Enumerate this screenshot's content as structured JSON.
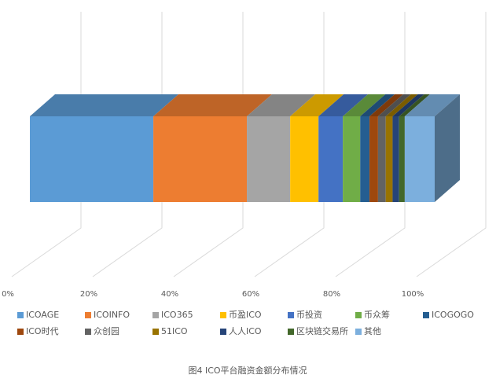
{
  "chart_data": {
    "type": "bar",
    "orientation": "horizontal",
    "stacked": true,
    "caption": "图4 ICO平台融资金额分布情况",
    "xlim": [
      0,
      100
    ],
    "xticks": [
      {
        "value": 0,
        "label": "0%"
      },
      {
        "value": 20,
        "label": "20%"
      },
      {
        "value": 40,
        "label": "40%"
      },
      {
        "value": 60,
        "label": "60%"
      },
      {
        "value": 80,
        "label": "80%"
      },
      {
        "value": 100,
        "label": "100%"
      }
    ],
    "grid": true,
    "legend": "bottom",
    "series": [
      {
        "name": "ICOAGE",
        "color": "#5b9bd5",
        "values": [
          30.5
        ]
      },
      {
        "name": "ICOINFO",
        "color": "#ed7d31",
        "values": [
          23.1
        ]
      },
      {
        "name": "ICO365",
        "color": "#a5a5a5",
        "values": [
          10.7
        ]
      },
      {
        "name": "币盈ICO",
        "color": "#ffc000",
        "values": [
          7.0
        ]
      },
      {
        "name": "币投资",
        "color": "#4472c4",
        "values": [
          6.0
        ]
      },
      {
        "name": "币众筹",
        "color": "#70ad47",
        "values": [
          4.3
        ]
      },
      {
        "name": "ICOGOGO",
        "color": "#255e91",
        "values": [
          2.3
        ]
      },
      {
        "name": "ICO时代",
        "color": "#9e480e",
        "values": [
          2.1
        ]
      },
      {
        "name": "众创园",
        "color": "#636363",
        "values": [
          1.9
        ]
      },
      {
        "name": "51ICO",
        "color": "#997300",
        "values": [
          1.7
        ]
      },
      {
        "name": "人人ICO",
        "color": "#264478",
        "values": [
          1.6
        ]
      },
      {
        "name": "区块链交易所",
        "color": "#43682b",
        "values": [
          1.4
        ]
      },
      {
        "name": "其他",
        "color": "#7cafdd",
        "values": [
          7.4
        ]
      }
    ]
  }
}
